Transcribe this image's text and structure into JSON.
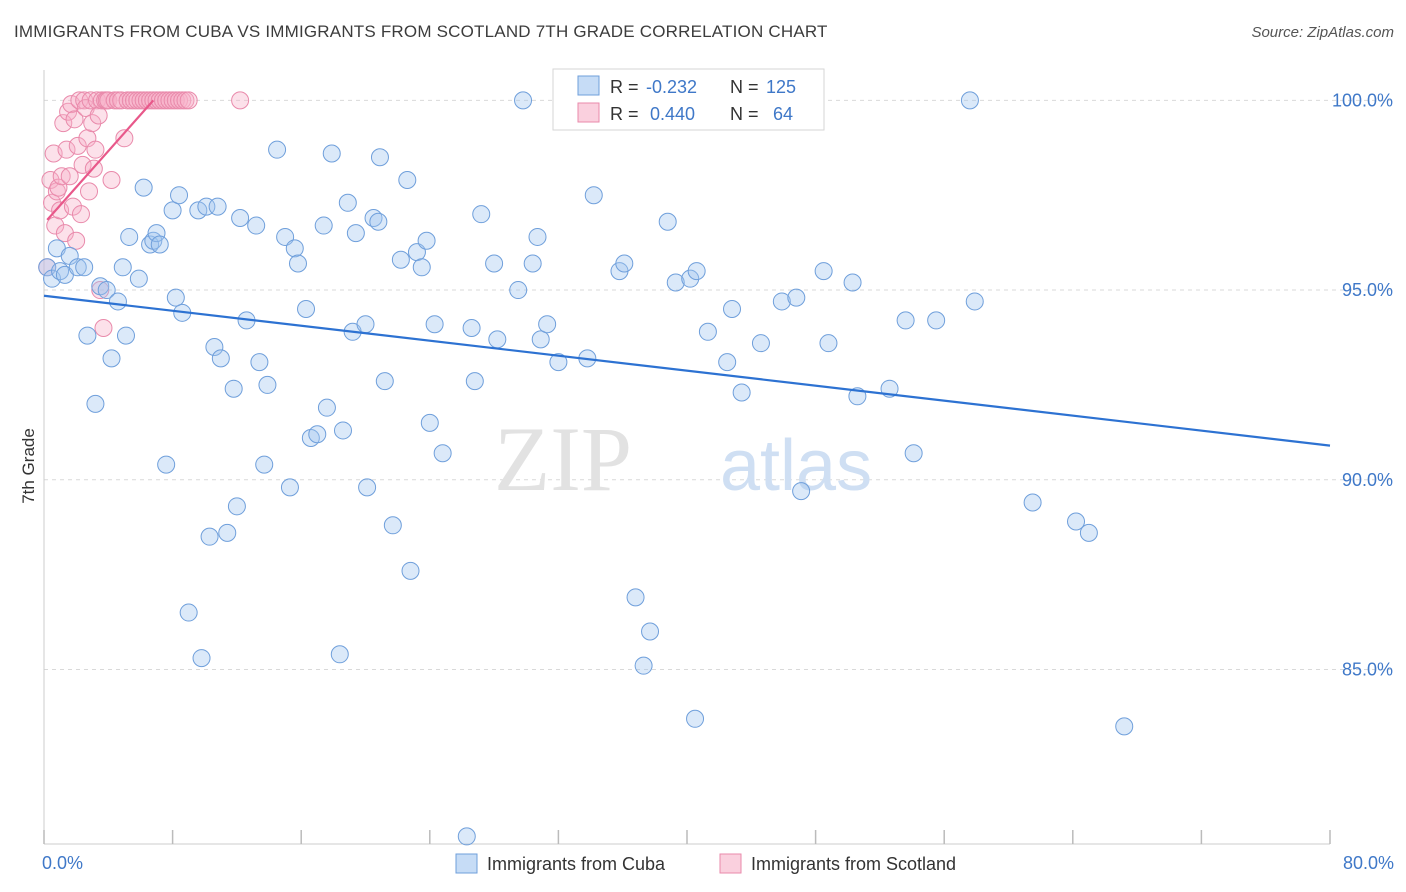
{
  "header": {
    "title": "IMMIGRANTS FROM CUBA VS IMMIGRANTS FROM SCOTLAND 7TH GRADE CORRELATION CHART",
    "source": "Source: ZipAtlas.com"
  },
  "watermark": {
    "zip": "ZIP",
    "atlas": "atlas"
  },
  "colors": {
    "cuba_fill": "rgba(160,196,240,0.38)",
    "cuba_stroke": "#6f9fdb",
    "cuba_line": "#2d72d2",
    "scotland_fill": "rgba(246,176,200,0.38)",
    "scotland_stroke": "#e98aab",
    "scotland_line": "#e8588a",
    "axis_value": "#3f78c8",
    "grid": "#d9d9d9"
  },
  "stats_legend": {
    "rows": [
      {
        "r_label": "R =",
        "r_value": "-0.232",
        "n_label": "N =",
        "n_value": "125"
      },
      {
        "r_label": "R =",
        "r_value": "0.440",
        "n_label": "N =",
        "n_value": "64"
      }
    ]
  },
  "chart_data": {
    "type": "scatter",
    "ylabel": "7th Grade",
    "xlim": [
      0,
      80
    ],
    "ylim": [
      80.4,
      100.8
    ],
    "x_tick_labels": [
      "0.0%",
      "80.0%"
    ],
    "y_ticks": [
      85,
      90,
      95,
      100
    ],
    "y_tick_labels": [
      "85.0%",
      "90.0%",
      "95.0%",
      "100.0%"
    ],
    "grid": "horizontal dashed",
    "legend_position": "bottom-center",
    "series": [
      {
        "name": "Immigrants from Cuba",
        "color": "#6f9fdb",
        "trend": {
          "x": [
            0,
            80
          ],
          "y": [
            94.85,
            90.9
          ]
        },
        "points": [
          [
            0.2,
            95.6
          ],
          [
            0.5,
            95.3
          ],
          [
            0.8,
            96.1
          ],
          [
            1.0,
            95.5
          ],
          [
            1.3,
            95.4
          ],
          [
            1.6,
            95.9
          ],
          [
            2.1,
            95.6
          ],
          [
            2.5,
            95.6
          ],
          [
            2.7,
            93.8
          ],
          [
            3.2,
            92.0
          ],
          [
            3.5,
            95.1
          ],
          [
            3.9,
            95.0
          ],
          [
            4.2,
            93.2
          ],
          [
            4.6,
            94.7
          ],
          [
            4.9,
            95.6
          ],
          [
            5.1,
            93.8
          ],
          [
            5.3,
            96.4
          ],
          [
            5.9,
            95.3
          ],
          [
            6.2,
            97.7
          ],
          [
            6.6,
            96.2
          ],
          [
            6.8,
            96.3
          ],
          [
            7.0,
            96.5
          ],
          [
            7.2,
            96.2
          ],
          [
            7.6,
            90.4
          ],
          [
            8.0,
            97.1
          ],
          [
            8.2,
            94.8
          ],
          [
            8.4,
            97.5
          ],
          [
            8.6,
            94.4
          ],
          [
            9.0,
            86.5
          ],
          [
            9.6,
            97.1
          ],
          [
            9.8,
            85.3
          ],
          [
            10.1,
            97.2
          ],
          [
            10.3,
            88.5
          ],
          [
            10.6,
            93.5
          ],
          [
            10.8,
            97.2
          ],
          [
            11.0,
            93.2
          ],
          [
            11.4,
            88.6
          ],
          [
            11.8,
            92.4
          ],
          [
            12.0,
            89.3
          ],
          [
            12.2,
            96.9
          ],
          [
            12.6,
            94.2
          ],
          [
            13.2,
            96.7
          ],
          [
            13.4,
            93.1
          ],
          [
            13.7,
            90.4
          ],
          [
            13.9,
            92.5
          ],
          [
            14.5,
            98.7
          ],
          [
            15.0,
            96.4
          ],
          [
            15.3,
            89.8
          ],
          [
            15.6,
            96.1
          ],
          [
            15.8,
            95.7
          ],
          [
            16.3,
            94.5
          ],
          [
            16.6,
            91.1
          ],
          [
            17.0,
            91.2
          ],
          [
            17.4,
            96.7
          ],
          [
            17.6,
            91.9
          ],
          [
            17.9,
            98.6
          ],
          [
            18.4,
            85.4
          ],
          [
            18.6,
            91.3
          ],
          [
            18.9,
            97.3
          ],
          [
            19.2,
            93.9
          ],
          [
            19.4,
            96.5
          ],
          [
            20.0,
            94.1
          ],
          [
            20.1,
            89.8
          ],
          [
            20.5,
            96.9
          ],
          [
            20.8,
            96.8
          ],
          [
            20.9,
            98.5
          ],
          [
            21.2,
            92.6
          ],
          [
            21.7,
            88.8
          ],
          [
            22.2,
            95.8
          ],
          [
            22.6,
            97.9
          ],
          [
            22.8,
            87.6
          ],
          [
            23.2,
            96.0
          ],
          [
            23.5,
            95.6
          ],
          [
            23.8,
            96.3
          ],
          [
            24.0,
            91.5
          ],
          [
            24.3,
            94.1
          ],
          [
            24.8,
            90.7
          ],
          [
            26.3,
            80.6
          ],
          [
            26.6,
            94.0
          ],
          [
            26.8,
            92.6
          ],
          [
            27.2,
            97.0
          ],
          [
            28.0,
            95.7
          ],
          [
            28.2,
            93.7
          ],
          [
            29.5,
            95.0
          ],
          [
            29.8,
            100.0
          ],
          [
            30.4,
            95.7
          ],
          [
            30.7,
            96.4
          ],
          [
            30.9,
            93.7
          ],
          [
            31.3,
            94.1
          ],
          [
            32.0,
            93.1
          ],
          [
            33.8,
            93.2
          ],
          [
            34.2,
            97.5
          ],
          [
            35.8,
            95.5
          ],
          [
            36.1,
            95.7
          ],
          [
            36.8,
            86.9
          ],
          [
            37.3,
            85.1
          ],
          [
            37.7,
            86.0
          ],
          [
            38.8,
            96.8
          ],
          [
            39.3,
            95.2
          ],
          [
            40.2,
            95.3
          ],
          [
            40.5,
            83.7
          ],
          [
            40.6,
            95.5
          ],
          [
            41.3,
            93.9
          ],
          [
            42.5,
            93.1
          ],
          [
            42.8,
            94.5
          ],
          [
            43.4,
            92.3
          ],
          [
            44.6,
            93.6
          ],
          [
            45.9,
            94.7
          ],
          [
            46.8,
            94.8
          ],
          [
            47.1,
            89.7
          ],
          [
            48.5,
            95.5
          ],
          [
            48.8,
            93.6
          ],
          [
            50.3,
            95.2
          ],
          [
            50.6,
            92.2
          ],
          [
            52.6,
            92.4
          ],
          [
            53.6,
            94.2
          ],
          [
            54.1,
            90.7
          ],
          [
            55.5,
            94.2
          ],
          [
            57.6,
            100.0
          ],
          [
            57.9,
            94.7
          ],
          [
            61.5,
            89.4
          ],
          [
            64.2,
            88.9
          ],
          [
            65.0,
            88.6
          ],
          [
            67.2,
            83.5
          ]
        ]
      },
      {
        "name": "Immigrants from Scotland",
        "color": "#e98aab",
        "trend": {
          "x": [
            0.2,
            6.8
          ],
          "y": [
            96.85,
            100.0
          ]
        },
        "points": [
          [
            0.2,
            95.6
          ],
          [
            0.4,
            97.9
          ],
          [
            0.5,
            97.3
          ],
          [
            0.6,
            98.6
          ],
          [
            0.7,
            96.7
          ],
          [
            0.8,
            97.6
          ],
          [
            0.9,
            97.7
          ],
          [
            1.0,
            97.1
          ],
          [
            1.1,
            98.0
          ],
          [
            1.2,
            99.4
          ],
          [
            1.3,
            96.5
          ],
          [
            1.4,
            98.7
          ],
          [
            1.5,
            99.7
          ],
          [
            1.6,
            98.0
          ],
          [
            1.7,
            99.9
          ],
          [
            1.8,
            97.2
          ],
          [
            1.9,
            99.5
          ],
          [
            2.0,
            96.3
          ],
          [
            2.1,
            98.8
          ],
          [
            2.2,
            100.0
          ],
          [
            2.3,
            97.0
          ],
          [
            2.4,
            98.3
          ],
          [
            2.5,
            100.0
          ],
          [
            2.6,
            99.8
          ],
          [
            2.7,
            99.0
          ],
          [
            2.8,
            97.6
          ],
          [
            2.9,
            100.0
          ],
          [
            3.0,
            99.4
          ],
          [
            3.1,
            98.2
          ],
          [
            3.2,
            98.7
          ],
          [
            3.3,
            100.0
          ],
          [
            3.4,
            99.6
          ],
          [
            3.5,
            95.0
          ],
          [
            3.6,
            100.0
          ],
          [
            3.7,
            94.0
          ],
          [
            3.8,
            100.0
          ],
          [
            3.9,
            100.0
          ],
          [
            4.0,
            100.0
          ],
          [
            4.2,
            97.9
          ],
          [
            4.4,
            100.0
          ],
          [
            4.6,
            100.0
          ],
          [
            4.8,
            100.0
          ],
          [
            5.0,
            99.0
          ],
          [
            5.2,
            100.0
          ],
          [
            5.4,
            100.0
          ],
          [
            5.6,
            100.0
          ],
          [
            5.8,
            100.0
          ],
          [
            6.0,
            100.0
          ],
          [
            6.2,
            100.0
          ],
          [
            6.4,
            100.0
          ],
          [
            6.6,
            100.0
          ],
          [
            6.8,
            100.0
          ],
          [
            7.0,
            100.0
          ],
          [
            7.2,
            100.0
          ],
          [
            7.4,
            100.0
          ],
          [
            7.6,
            100.0
          ],
          [
            7.8,
            100.0
          ],
          [
            8.0,
            100.0
          ],
          [
            8.2,
            100.0
          ],
          [
            8.4,
            100.0
          ],
          [
            8.6,
            100.0
          ],
          [
            8.8,
            100.0
          ],
          [
            9.0,
            100.0
          ],
          [
            12.2,
            100.0
          ]
        ]
      }
    ]
  }
}
